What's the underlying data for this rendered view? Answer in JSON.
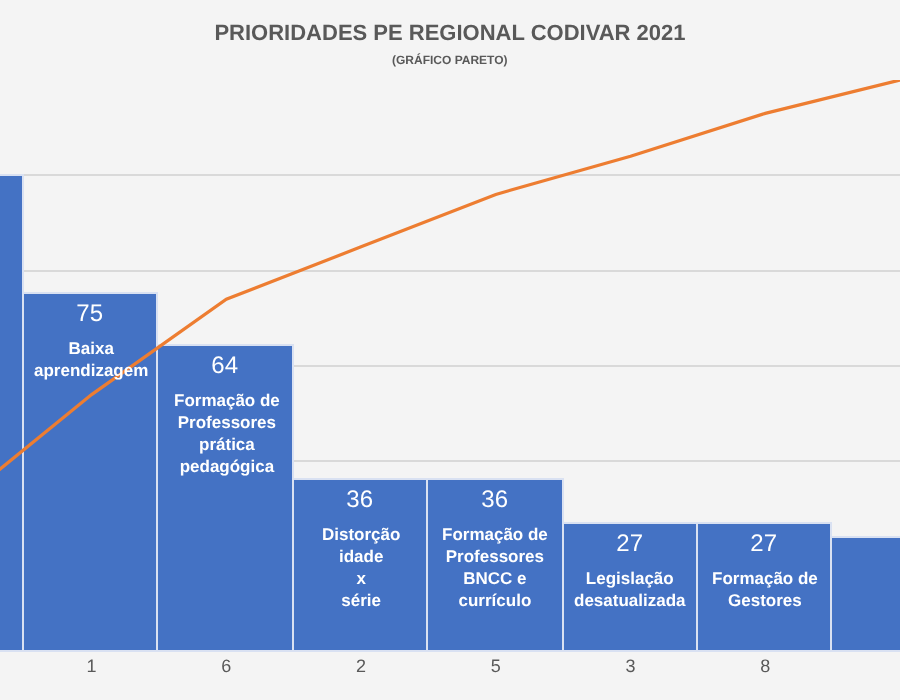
{
  "chart_data": {
    "type": "bar",
    "title": "PRIORIDADES PE REGIONAL CODIVAR 2021",
    "subtitle": "(GRÁFICO PARETO)",
    "categories": [
      null,
      "1",
      "6",
      "2",
      "5",
      "3",
      "8",
      null
    ],
    "series": [
      {
        "color": "#4472c4",
        "values": [
          100,
          75,
          64,
          36,
          36,
          27,
          27,
          24
        ],
        "value_labels": [
          null,
          "75",
          "64",
          "36",
          "36",
          "27",
          "27",
          null
        ]
      },
      {
        "type": "line",
        "color": "#ed7d31",
        "values": [
          31,
          54,
          74,
          85,
          96,
          104,
          113,
          120
        ]
      }
    ],
    "annotations": [
      {
        "text": "Baixa\naprendizagem",
        "x": "1",
        "y": 75
      },
      {
        "text": "Formação de\nProfessores\nprática\npedagógica",
        "x": "6",
        "y": 64
      },
      {
        "text": "Distorção\nidade\nx\nsérie",
        "x": "2",
        "y": 36
      },
      {
        "text": "Formação de\nProfessores\nBNCC e\ncurrículo",
        "x": "5",
        "y": 36
      },
      {
        "text": "Legislação\ndesatualizada",
        "x": "3",
        "y": 27
      },
      {
        "text": "Formação de\nGestores",
        "x": "8",
        "y": 27
      }
    ],
    "grid": "y",
    "tick_labels": "x",
    "marker": "none",
    "line_style": "solid"
  }
}
